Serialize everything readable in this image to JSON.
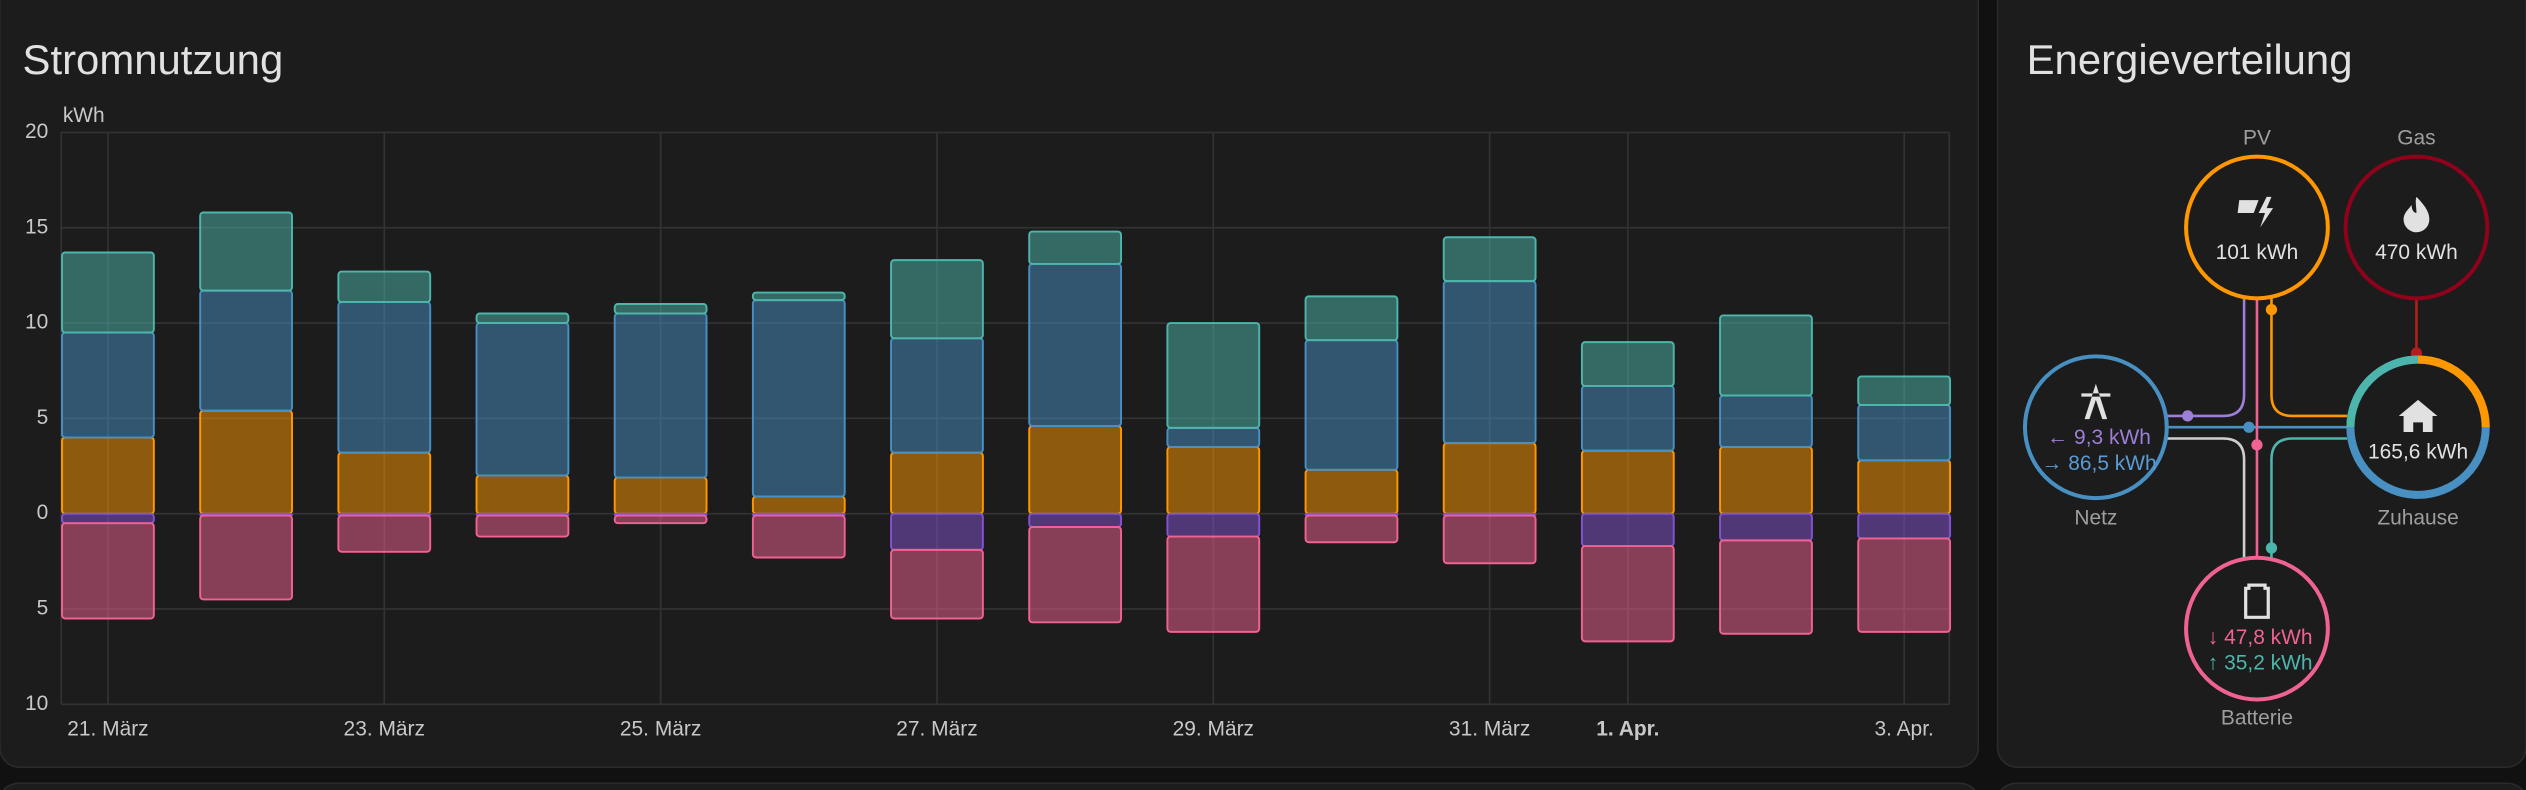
{
  "chart_data": {
    "type": "bar",
    "stacked": true,
    "title": "Stromnutzung",
    "y_label": "kWh",
    "categories": [
      "21. März",
      null,
      "23. März",
      null,
      "25. März",
      null,
      "27. März",
      null,
      "29. März",
      null,
      "31. März",
      "1. Apr.",
      null,
      "3. Apr."
    ],
    "ylim": [
      -10,
      20
    ],
    "yticks": [
      {
        "value": -10,
        "label": "10"
      },
      {
        "value": -5,
        "label": "5"
      },
      0,
      5,
      10,
      15,
      20
    ],
    "grid": true,
    "series": [
      {
        "color": "#ff9800",
        "values": [
          4.0,
          5.4,
          3.2,
          2.0,
          1.9,
          0.9,
          3.2,
          4.6,
          3.5,
          2.3,
          3.7,
          3.3,
          3.5,
          2.8
        ]
      },
      {
        "color": "#488fc2",
        "values": [
          5.5,
          6.3,
          7.9,
          8.0,
          8.6,
          10.3,
          6.0,
          8.5,
          1.0,
          6.8,
          8.5,
          3.4,
          2.7,
          2.9
        ]
      },
      {
        "color": "#4db6ac",
        "values": [
          4.2,
          4.1,
          1.6,
          0.5,
          0.5,
          0.4,
          4.1,
          1.7,
          5.5,
          2.3,
          2.3,
          2.3,
          4.2,
          1.5
        ]
      },
      {
        "color": "#8353d1",
        "values": [
          -0.5,
          -0.1,
          -0.1,
          -0.1,
          -0.1,
          -0.1,
          -1.9,
          -0.7,
          -1.2,
          -0.1,
          -0.1,
          -1.7,
          -1.4,
          -1.3
        ]
      },
      {
        "color": "#f06292",
        "values": [
          -5.0,
          -4.4,
          -1.9,
          -1.1,
          -0.4,
          -2.2,
          -3.6,
          -5.0,
          -5.0,
          -1.4,
          -2.5,
          -5.0,
          -4.9,
          -4.9
        ]
      }
    ]
  },
  "distribution": {
    "title": "Energieverteilung",
    "nodes": [
      {
        "label": "PV",
        "values": [
          "101 kWh"
        ]
      },
      {
        "label": "Gas",
        "values": [
          "470 kWh"
        ]
      },
      {
        "label": "Netz",
        "values": [
          "← 9,3 kWh",
          "→ 86,5 kWh"
        ]
      },
      {
        "label": "Zuhause",
        "values": [
          "165,6 kWh"
        ]
      },
      {
        "label": "Batterie",
        "values": [
          "↓ 47,8 kWh",
          "↑ 35,2 kWh"
        ]
      }
    ]
  }
}
